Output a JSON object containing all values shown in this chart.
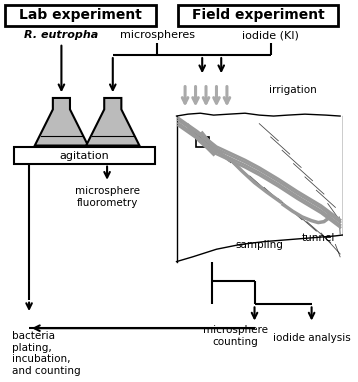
{
  "title_lab": "Lab experiment",
  "title_field": "Field experiment",
  "label_reutropha": "R. eutropha",
  "label_microspheres": "microspheres",
  "label_iodide": "iodide (KI)",
  "label_agitation": "agitation",
  "label_microsphere_fluoro": "microsphere\nfluorometry",
  "label_irrigation": "irrigation",
  "label_sampling": "sampling",
  "label_tunnel": "tunnel",
  "label_bacteria": "bacteria\nplating,\nincubation,\nand counting",
  "label_microsphere_count": "microsphere\ncounting",
  "label_iodide_analysis": "iodide analysis",
  "bg_color": "#ffffff",
  "gray_color": "#aaaaaa",
  "flask_fill": "#bbbbbb"
}
